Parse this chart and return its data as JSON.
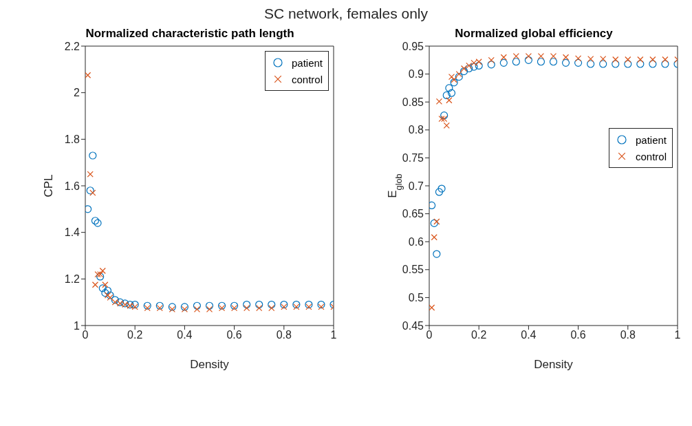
{
  "chart_data": [
    {
      "type": "scatter",
      "title": "Normalized characteristic path length",
      "annotations": [
        "SC network, females only"
      ],
      "xlabel": "Density",
      "ylabel": "CPL",
      "xlim": [
        0,
        1
      ],
      "xticks": [
        0,
        0.2,
        0.4,
        0.6,
        0.8,
        1
      ],
      "ylim": [
        1,
        2.2
      ],
      "yticks": [
        1,
        1.2,
        1.4,
        1.6,
        1.8,
        2,
        2.2
      ],
      "legend": "top right",
      "series": [
        {
          "name": "patient",
          "color": "#0072bd",
          "marker": "circle",
          "x": [
            0.01,
            0.02,
            0.03,
            0.04,
            0.05,
            0.06,
            0.07,
            0.08,
            0.09,
            0.1,
            0.12,
            0.14,
            0.16,
            0.18,
            0.2,
            0.25,
            0.3,
            0.35,
            0.4,
            0.45,
            0.5,
            0.55,
            0.6,
            0.65,
            0.7,
            0.75,
            0.8,
            0.85,
            0.9,
            0.95,
            1
          ],
          "values": [
            1.5,
            1.58,
            1.73,
            1.45,
            1.44,
            1.21,
            1.16,
            1.14,
            1.15,
            1.13,
            1.11,
            1.1,
            1.095,
            1.09,
            1.09,
            1.085,
            1.085,
            1.08,
            1.08,
            1.085,
            1.085,
            1.085,
            1.085,
            1.09,
            1.09,
            1.09,
            1.09,
            1.09,
            1.09,
            1.09,
            1.09
          ]
        },
        {
          "name": "control",
          "color": "#d95319",
          "marker": "cross",
          "x": [
            0.01,
            0.02,
            0.03,
            0.04,
            0.05,
            0.06,
            0.07,
            0.08,
            0.09,
            0.1,
            0.12,
            0.14,
            0.16,
            0.18,
            0.2,
            0.25,
            0.3,
            0.35,
            0.4,
            0.45,
            0.5,
            0.55,
            0.6,
            0.65,
            0.7,
            0.75,
            0.8,
            0.85,
            0.9,
            0.95,
            1
          ],
          "values": [
            2.075,
            1.65,
            1.57,
            1.175,
            1.22,
            1.22,
            1.235,
            1.175,
            1.13,
            1.12,
            1.1,
            1.095,
            1.09,
            1.085,
            1.08,
            1.075,
            1.075,
            1.07,
            1.07,
            1.07,
            1.07,
            1.075,
            1.075,
            1.075,
            1.075,
            1.075,
            1.08,
            1.08,
            1.08,
            1.08,
            1.08
          ]
        }
      ]
    },
    {
      "type": "scatter",
      "title": "Normalized global efficiency",
      "xlabel": "Density",
      "ylabel": "E$_{glob}$",
      "xlim": [
        0,
        1
      ],
      "xticks": [
        0,
        0.2,
        0.4,
        0.6,
        0.8,
        1
      ],
      "ylim": [
        0.45,
        0.95
      ],
      "yticks": [
        0.45,
        0.5,
        0.55,
        0.6,
        0.65,
        0.7,
        0.75,
        0.8,
        0.85,
        0.9,
        0.95
      ],
      "legend": "right",
      "series": [
        {
          "name": "patient",
          "color": "#0072bd",
          "marker": "circle",
          "x": [
            0.01,
            0.02,
            0.03,
            0.04,
            0.05,
            0.06,
            0.07,
            0.08,
            0.09,
            0.1,
            0.12,
            0.14,
            0.16,
            0.18,
            0.2,
            0.25,
            0.3,
            0.35,
            0.4,
            0.45,
            0.5,
            0.55,
            0.6,
            0.65,
            0.7,
            0.75,
            0.8,
            0.85,
            0.9,
            0.95,
            1
          ],
          "values": [
            0.665,
            0.633,
            0.578,
            0.689,
            0.695,
            0.826,
            0.862,
            0.875,
            0.866,
            0.885,
            0.895,
            0.905,
            0.91,
            0.913,
            0.915,
            0.917,
            0.92,
            0.922,
            0.925,
            0.922,
            0.922,
            0.92,
            0.92,
            0.918,
            0.918,
            0.918,
            0.918,
            0.918,
            0.918,
            0.918,
            0.918
          ]
        },
        {
          "name": "control",
          "color": "#d95319",
          "marker": "cross",
          "x": [
            0.01,
            0.02,
            0.03,
            0.04,
            0.05,
            0.06,
            0.07,
            0.08,
            0.09,
            0.1,
            0.12,
            0.14,
            0.16,
            0.18,
            0.2,
            0.25,
            0.3,
            0.35,
            0.4,
            0.45,
            0.5,
            0.55,
            0.6,
            0.65,
            0.7,
            0.75,
            0.8,
            0.85,
            0.9,
            0.95,
            1
          ],
          "values": [
            0.482,
            0.608,
            0.636,
            0.851,
            0.82,
            0.82,
            0.808,
            0.853,
            0.895,
            0.89,
            0.9,
            0.91,
            0.915,
            0.92,
            0.922,
            0.925,
            0.93,
            0.932,
            0.932,
            0.932,
            0.932,
            0.93,
            0.928,
            0.927,
            0.927,
            0.926,
            0.926,
            0.926,
            0.926,
            0.926,
            0.926
          ]
        }
      ]
    }
  ]
}
